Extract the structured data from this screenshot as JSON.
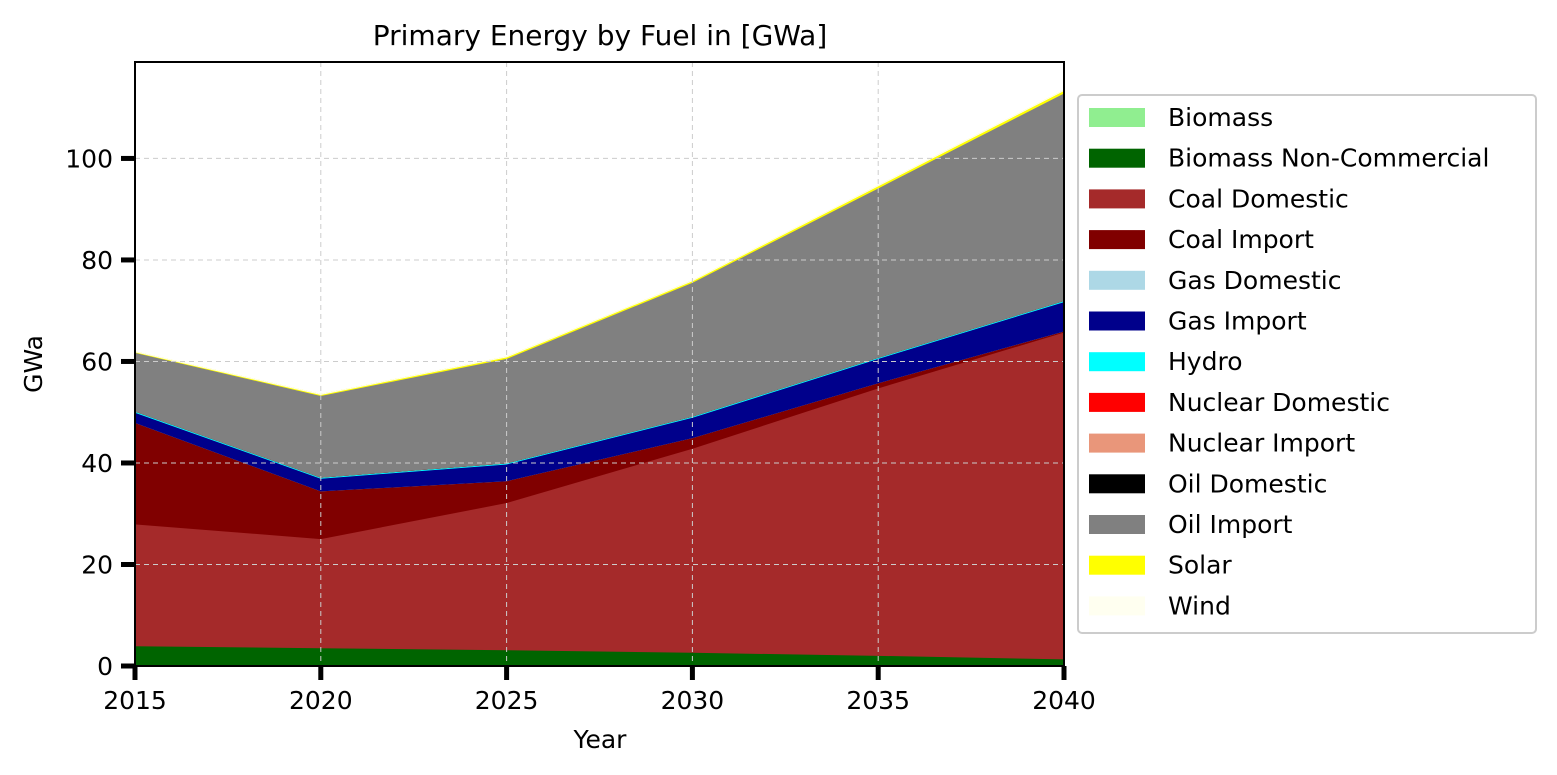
{
  "chart_data": {
    "type": "area",
    "stacked": true,
    "title": "Primary Energy by Fuel in [GWa]",
    "xlabel": "Year",
    "ylabel": "GWa",
    "x": [
      2015,
      2020,
      2025,
      2030,
      2035,
      2040
    ],
    "xlim": [
      2015,
      2040
    ],
    "ylim": [
      0,
      119
    ],
    "xticks": [
      "2015",
      "2020",
      "2025",
      "2030",
      "2035",
      "2040"
    ],
    "yticks": [
      "0",
      "20",
      "40",
      "60",
      "80",
      "100"
    ],
    "grid": true,
    "legend_position": "right-outside",
    "series": [
      {
        "name": "Biomass",
        "color": "#90ee90",
        "values": [
          0.2,
          0.2,
          0.2,
          0.2,
          0.2,
          0.2
        ]
      },
      {
        "name": "Biomass Non-Commercial",
        "color": "#006400",
        "values": [
          3.8,
          3.4,
          3.0,
          2.5,
          1.9,
          1.2
        ]
      },
      {
        "name": "Coal Domestic",
        "color": "#a52a2a",
        "values": [
          24.0,
          21.5,
          29.0,
          40.2,
          52.7,
          64.4
        ]
      },
      {
        "name": "Coal Import",
        "color": "#800000",
        "values": [
          20.0,
          9.4,
          4.3,
          2.1,
          1.0,
          0.2
        ]
      },
      {
        "name": "Gas Domestic",
        "color": "#add8e6",
        "values": [
          0.0,
          0.0,
          0.0,
          0.0,
          0.0,
          0.0
        ]
      },
      {
        "name": "Gas Import",
        "color": "#00008b",
        "values": [
          2.0,
          2.5,
          3.3,
          4.0,
          4.8,
          5.8
        ]
      },
      {
        "name": "Hydro",
        "color": "#00ffff",
        "values": [
          0.2,
          0.2,
          0.2,
          0.2,
          0.2,
          0.2
        ]
      },
      {
        "name": "Nuclear Domestic",
        "color": "#ff0000",
        "values": [
          0.0,
          0.0,
          0.0,
          0.0,
          0.0,
          0.0
        ]
      },
      {
        "name": "Nuclear Import",
        "color": "#e9967a",
        "values": [
          0.0,
          0.0,
          0.0,
          0.0,
          0.0,
          0.0
        ]
      },
      {
        "name": "Oil Domestic",
        "color": "#000000",
        "values": [
          0.0,
          0.0,
          0.0,
          0.0,
          0.0,
          0.0
        ]
      },
      {
        "name": "Oil Import",
        "color": "#808080",
        "values": [
          11.6,
          16.1,
          20.6,
          26.4,
          33.4,
          40.9
        ]
      },
      {
        "name": "Solar",
        "color": "#ffff00",
        "values": [
          0.1,
          0.2,
          0.3,
          0.3,
          0.4,
          0.5
        ]
      },
      {
        "name": "Wind",
        "color": "#fffff0",
        "values": [
          0.0,
          0.0,
          0.0,
          0.0,
          0.0,
          0.0
        ]
      }
    ]
  }
}
